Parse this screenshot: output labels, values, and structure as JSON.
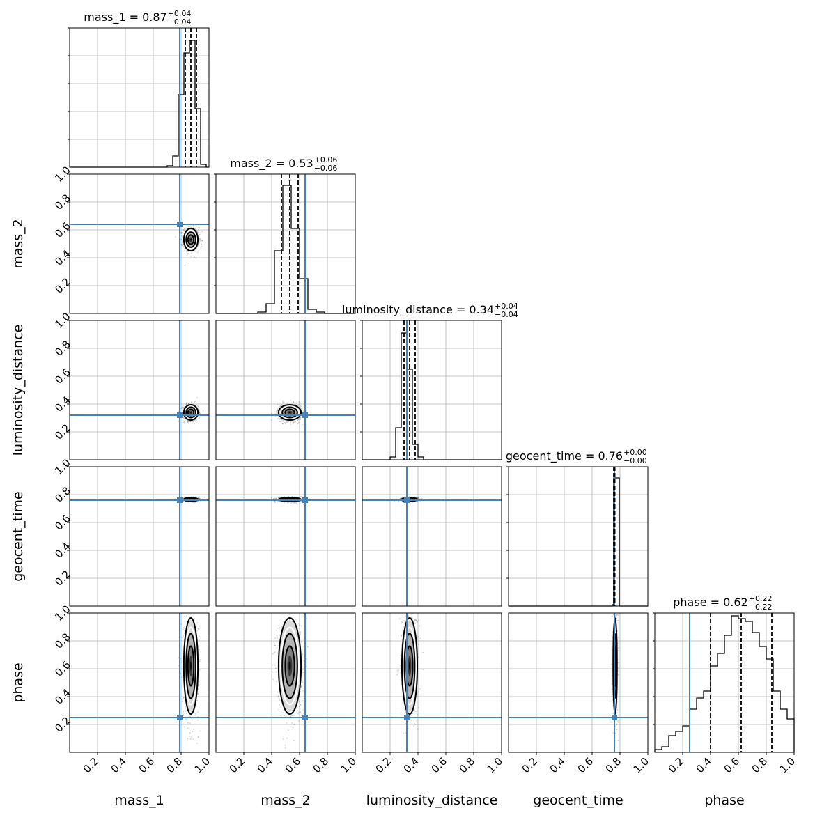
{
  "chart_data": {
    "type": "corner",
    "parameters": [
      "mass_1",
      "mass_2",
      "luminosity_distance",
      "geocent_time",
      "phase"
    ],
    "axis_range": [
      0,
      1
    ],
    "tick_values": [
      0.2,
      0.4,
      0.6,
      0.8,
      1.0
    ],
    "tick_labels": [
      "0.2",
      "0.4",
      "0.6",
      "0.8",
      "1.0"
    ],
    "grid": true,
    "truth_color": "#4682b4",
    "truths": [
      0.79,
      0.64,
      0.32,
      0.76,
      0.25
    ],
    "summaries": [
      {
        "parameter": "mass_1",
        "title": "mass_1 = 0.87",
        "median": 0.87,
        "plus": "+0.04",
        "minus": "−0.04",
        "quantiles": [
          0.83,
          0.87,
          0.91
        ]
      },
      {
        "parameter": "mass_2",
        "title": "mass_2 = 0.53",
        "median": 0.53,
        "plus": "+0.06",
        "minus": "−0.06",
        "quantiles": [
          0.47,
          0.53,
          0.59
        ]
      },
      {
        "parameter": "luminosity_distance",
        "title": "luminosity_distance = 0.34",
        "median": 0.34,
        "plus": "+0.04",
        "minus": "−0.04",
        "quantiles": [
          0.3,
          0.34,
          0.38
        ]
      },
      {
        "parameter": "geocent_time",
        "title": "geocent_time = 0.76",
        "median": 0.76,
        "plus": "+0.00",
        "minus": "−0.00",
        "quantiles": [
          0.755,
          0.76,
          0.763
        ]
      },
      {
        "parameter": "phase",
        "title": "phase = 0.62",
        "median": 0.62,
        "plus": "+0.22",
        "minus": "−0.22",
        "quantiles": [
          0.4,
          0.62,
          0.84
        ]
      }
    ],
    "histograms": [
      {
        "parameter": "mass_1",
        "bin_edges": [
          0.7,
          0.74,
          0.78,
          0.82,
          0.86,
          0.9,
          0.94,
          0.98
        ],
        "counts": [
          0.01,
          0.08,
          0.52,
          0.82,
          0.91,
          0.42,
          0.02
        ]
      },
      {
        "parameter": "mass_2",
        "bin_edges": [
          0.3,
          0.36,
          0.42,
          0.48,
          0.54,
          0.6,
          0.66,
          0.72,
          0.78
        ],
        "counts": [
          0.01,
          0.07,
          0.45,
          0.92,
          0.61,
          0.25,
          0.03,
          0.01
        ]
      },
      {
        "parameter": "luminosity_distance",
        "bin_edges": [
          0.2,
          0.24,
          0.28,
          0.32,
          0.36,
          0.4,
          0.44,
          0.48
        ],
        "counts": [
          0.02,
          0.23,
          0.91,
          0.65,
          0.11,
          0.02,
          0.0
        ]
      },
      {
        "parameter": "geocent_time",
        "bin_edges": [
          0.745,
          0.755,
          0.765,
          0.775,
          0.785,
          0.795
        ],
        "counts": [
          0.01,
          0.92,
          0.92,
          0.92,
          0.92
        ]
      },
      {
        "parameter": "phase",
        "bin_edges": [
          0.0,
          0.05,
          0.1,
          0.15,
          0.2,
          0.25,
          0.3,
          0.35,
          0.4,
          0.45,
          0.5,
          0.55,
          0.6,
          0.65,
          0.7,
          0.75,
          0.8,
          0.85,
          0.9,
          0.95,
          1.0
        ],
        "counts": [
          0.02,
          0.04,
          0.12,
          0.15,
          0.19,
          0.31,
          0.39,
          0.44,
          0.62,
          0.71,
          0.84,
          0.98,
          0.96,
          0.94,
          0.86,
          0.76,
          0.67,
          0.44,
          0.31,
          0.24
        ]
      }
    ],
    "joint_distributions": [
      {
        "x": "mass_1",
        "y": "mass_2",
        "mean": [
          0.87,
          0.53
        ],
        "sd": [
          0.022,
          0.035
        ]
      },
      {
        "x": "mass_1",
        "y": "luminosity_distance",
        "mean": [
          0.87,
          0.34
        ],
        "sd": [
          0.022,
          0.024
        ]
      },
      {
        "x": "mass_2",
        "y": "luminosity_distance",
        "mean": [
          0.53,
          0.34
        ],
        "sd": [
          0.035,
          0.024
        ]
      },
      {
        "x": "mass_1",
        "y": "geocent_time",
        "mean": [
          0.87,
          0.765
        ],
        "sd": [
          0.022,
          0.006
        ]
      },
      {
        "x": "mass_2",
        "y": "geocent_time",
        "mean": [
          0.53,
          0.765
        ],
        "sd": [
          0.035,
          0.006
        ]
      },
      {
        "x": "luminosity_distance",
        "y": "geocent_time",
        "mean": [
          0.34,
          0.765
        ],
        "sd": [
          0.024,
          0.006
        ]
      },
      {
        "x": "mass_1",
        "y": "phase",
        "mean": [
          0.87,
          0.62
        ],
        "sd": [
          0.022,
          0.15
        ]
      },
      {
        "x": "mass_2",
        "y": "phase",
        "mean": [
          0.53,
          0.62
        ],
        "sd": [
          0.035,
          0.15
        ]
      },
      {
        "x": "luminosity_distance",
        "y": "phase",
        "mean": [
          0.34,
          0.62
        ],
        "sd": [
          0.024,
          0.15
        ]
      },
      {
        "x": "geocent_time",
        "y": "phase",
        "mean": [
          0.765,
          0.62
        ],
        "sd": [
          0.006,
          0.15
        ]
      }
    ]
  }
}
